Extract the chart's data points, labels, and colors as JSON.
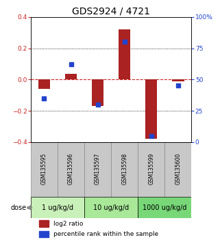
{
  "title": "GDS2924 / 4721",
  "samples": [
    "GSM135595",
    "GSM135596",
    "GSM135597",
    "GSM135598",
    "GSM135599",
    "GSM135600"
  ],
  "log2_ratio": [
    -0.062,
    0.038,
    -0.17,
    0.32,
    -0.38,
    -0.01
  ],
  "percentile_rank": [
    35,
    62,
    30,
    80,
    5,
    45
  ],
  "ylim_left": [
    -0.4,
    0.4
  ],
  "ylim_right": [
    0,
    100
  ],
  "yticks_left": [
    -0.4,
    -0.2,
    0.0,
    0.2,
    0.4
  ],
  "yticks_right": [
    0,
    25,
    50,
    75,
    100
  ],
  "bar_color": "#aa2222",
  "square_color": "#2244cc",
  "bar_width": 0.45,
  "square_size": 18,
  "hline_color": "#cc2222",
  "grid_color": "#000000",
  "sample_box_color": "#c8c8c8",
  "left_label_color": "#cc2222",
  "right_label_color": "#2244cc",
  "legend_red_label": "log2 ratio",
  "legend_blue_label": "percentile rank within the sample",
  "dose_labels": [
    "1 ug/kg/d",
    "10 ug/kg/d",
    "1000 ug/kg/d"
  ],
  "dose_colors": [
    "#c8f0b8",
    "#a8e898",
    "#78d878"
  ],
  "title_fontsize": 10,
  "tick_fontsize": 6.5,
  "sample_fontsize": 5.5,
  "legend_fontsize": 6.5,
  "dose_fontsize": 7
}
